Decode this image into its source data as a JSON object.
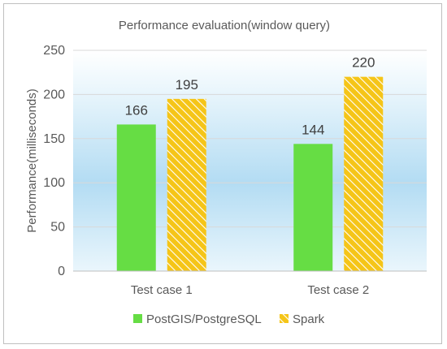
{
  "chart_data": {
    "type": "bar",
    "title": "Performance evaluation(window query)",
    "xlabel": "",
    "ylabel": "Performance(milliseconds)",
    "categories": [
      "Test case 1",
      "Test case 2"
    ],
    "series": [
      {
        "name": "PostGIS/PostgreSQL",
        "values": [
          166,
          144
        ],
        "color": "#66dd44",
        "pattern": "solid"
      },
      {
        "name": "Spark",
        "values": [
          195,
          220
        ],
        "color": "#f5c518",
        "pattern": "diagonal-hatch"
      }
    ],
    "ylim": [
      0,
      250
    ],
    "yticks": [
      0,
      50,
      100,
      150,
      200,
      250
    ],
    "grid": true,
    "legend": "bottom",
    "background": "sky-gradient"
  }
}
